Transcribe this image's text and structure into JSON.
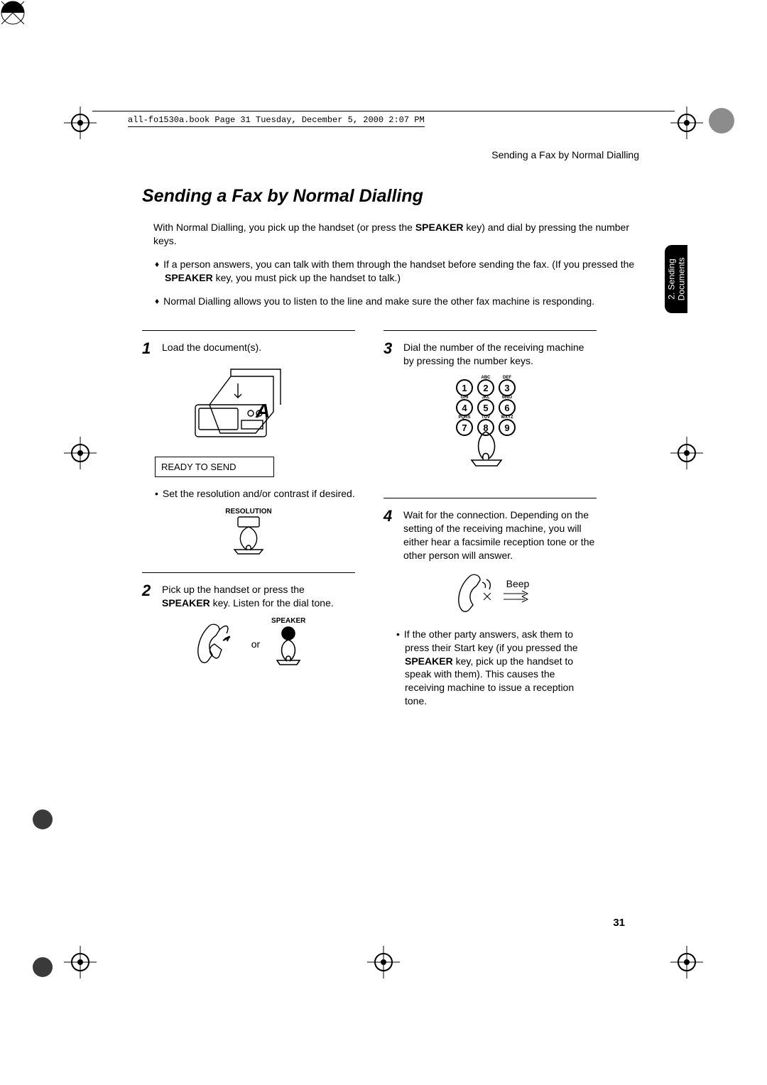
{
  "book_info": "all-fo1530a.book  Page 31  Tuesday, December 5, 2000  2:07 PM",
  "running_head": "Sending a Fax by Normal Dialling",
  "heading": "Sending a Fax by Normal Dialling",
  "intro_lead_a": "With Normal Dialling, you pick up the handset (or press the ",
  "intro_lead_b": " key) and dial by pressing the number keys.",
  "intro_bullets": [
    {
      "parts": [
        {
          "t": "If a person answers, you can talk with them through the handset before sending the fax. (If you pressed the ",
          "b": false
        },
        {
          "t": "SPEAKER",
          "b": true
        },
        {
          "t": " key, you must pick up the handset to talk.)",
          "b": false
        }
      ]
    },
    {
      "parts": [
        {
          "t": "Normal Dialling allows you to listen to the line and make sure the other fax machine is responding.",
          "b": false
        }
      ]
    }
  ],
  "speaker_key": "SPEAKER",
  "steps": {
    "s1": {
      "num": "1",
      "text": "Load the document(s)."
    },
    "s1_display": "READY TO SEND",
    "s1_sub": "Set the resolution and/or contrast if desired.",
    "s1_btn": "RESOLUTION",
    "s2": {
      "num": "2",
      "text_a": "Pick up the handset or press the ",
      "text_b": " key. Listen for the dial tone."
    },
    "s2_or": "or",
    "s2_btn": "SPEAKER",
    "s3": {
      "num": "3",
      "text": "Dial the number of the receiving machine by pressing the number keys."
    },
    "s4": {
      "num": "4",
      "text": "Wait for the connection. Depending on the setting of the receiving machine, you will either hear a facsimile reception tone or the other person will answer."
    },
    "s4_beep": "Beep",
    "s4_sub_a": "If the other party answers, ask them to press their Start key (if you pressed the ",
    "s4_sub_b": " key, pick up the handset to speak with them). This causes the receiving machine to issue a reception tone."
  },
  "keypad": {
    "rows": [
      {
        "labels": [
          "",
          "ABC",
          "DEF"
        ],
        "keys": [
          "1",
          "2",
          "3"
        ]
      },
      {
        "labels": [
          "GHI",
          "JKL",
          "MNO"
        ],
        "keys": [
          "4",
          "5",
          "6"
        ]
      },
      {
        "labels": [
          "PQRS",
          "TUV",
          "WXYZ"
        ],
        "keys": [
          "7",
          "8",
          "9"
        ]
      }
    ]
  },
  "side_tab_a": "2. Sending",
  "side_tab_b": "Documents",
  "page_number": "31",
  "colors": {
    "text": "#000000",
    "background": "#ffffff",
    "tab_bg": "#000000",
    "tab_fg": "#ffffff"
  }
}
